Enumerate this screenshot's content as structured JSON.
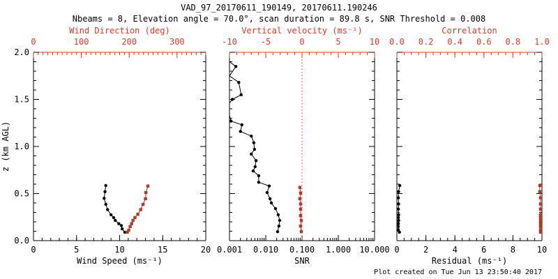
{
  "title": "VAD_97_20170611_190149, 20170611.190246",
  "subtitle": "Nbeams = 8, Elevation angle = 70.0°, scan duration = 89.8 s, SNR Threshold = 0.008",
  "footer": "Plot created on Tue Jun 13 23:50:40 2017",
  "colors": {
    "black": "#000000",
    "axis_red": "#e03a2a",
    "data_red": "#b23a28",
    "background": "#ffffff"
  },
  "y_axis": {
    "label": "z (km AGL)",
    "lim": [
      0.0,
      2.0
    ],
    "ticks": [
      0.0,
      0.5,
      1.0,
      1.5,
      2.0
    ],
    "tick_labels": [
      "0.0",
      "0.5",
      "1.0",
      "1.5",
      "2.0"
    ],
    "minor_step": 0.1
  },
  "chart_data": [
    {
      "type": "line",
      "name": "wind-panel",
      "bottom_axis": {
        "label": "Wind Speed (ms⁻¹)",
        "scale": "linear",
        "lim": [
          0,
          20
        ],
        "ticks": [
          0,
          5,
          10,
          15,
          20
        ],
        "tick_labels": [
          "0",
          "5",
          "10",
          "15",
          "20"
        ],
        "minor_step": 1
      },
      "top_axis": {
        "label": "Wind Direction (deg)",
        "lim": [
          0,
          360
        ],
        "ticks": [
          0,
          100,
          200,
          300
        ],
        "tick_labels": [
          "0",
          "100",
          "200",
          "300"
        ],
        "minor_step": 10
      },
      "series": [
        {
          "name": "wind-speed",
          "axis": "bottom",
          "color": "black",
          "marker": "circle",
          "points": [
            [
              8.4,
              0.585
            ],
            [
              8.3,
              0.52
            ],
            [
              8.2,
              0.45
            ],
            [
              8.4,
              0.385
            ],
            [
              8.6,
              0.33
            ],
            [
              9.0,
              0.275
            ],
            [
              9.3,
              0.245
            ],
            [
              9.5,
              0.215
            ],
            [
              9.9,
              0.18
            ],
            [
              10.2,
              0.16
            ],
            [
              10.3,
              0.125
            ],
            [
              10.6,
              0.09
            ]
          ]
        },
        {
          "name": "wind-direction",
          "axis": "top",
          "color": "red",
          "marker": "square",
          "points": [
            [
              239,
              0.58
            ],
            [
              235,
              0.51
            ],
            [
              234,
              0.445
            ],
            [
              229,
              0.385
            ],
            [
              224,
              0.33
            ],
            [
              218,
              0.28
            ],
            [
              212,
              0.245
            ],
            [
              208,
              0.215
            ],
            [
              205,
              0.18
            ],
            [
              202,
              0.15
            ],
            [
              199,
              0.11
            ],
            [
              196,
              0.09
            ]
          ]
        }
      ]
    },
    {
      "type": "line",
      "name": "snr-panel",
      "bottom_axis": {
        "label": "SNR",
        "scale": "log",
        "lim": [
          0.001,
          10.0
        ],
        "ticks": [
          0.001,
          0.01,
          0.1,
          1.0,
          10.0
        ],
        "tick_labels": [
          "0.001",
          "0.010",
          "0.100",
          "1.000",
          "10.000"
        ]
      },
      "top_axis": {
        "label": "Vertical velocity (ms⁻¹)",
        "lim": [
          -10,
          10
        ],
        "ticks": [
          -10,
          -5,
          0,
          5,
          10
        ],
        "tick_labels": [
          "-10",
          "-5",
          "0",
          "5",
          "10"
        ],
        "minor_step": 1
      },
      "refline": {
        "axis": "top",
        "value": 0,
        "style": "dotted",
        "color": "red"
      },
      "series": [
        {
          "name": "snr",
          "axis": "bottom",
          "color": "black",
          "marker": "circle",
          "marker_min": 0.00105,
          "points": [
            [
              0.001,
              1.9
            ],
            [
              0.0015,
              1.85
            ],
            [
              0.001,
              1.75
            ],
            [
              0.0018,
              1.68
            ],
            [
              0.0021,
              1.55
            ],
            [
              0.0012,
              1.5
            ],
            [
              0.001,
              1.46
            ],
            [
              0.001,
              1.33
            ],
            [
              0.0011,
              1.27
            ],
            [
              0.0022,
              1.23
            ],
            [
              0.002,
              1.16
            ],
            [
              0.004,
              1.11
            ],
            [
              0.0047,
              1.04
            ],
            [
              0.0049,
              0.97
            ],
            [
              0.004,
              0.92
            ],
            [
              0.0054,
              0.85
            ],
            [
              0.0051,
              0.785
            ],
            [
              0.0045,
              0.74
            ],
            [
              0.0064,
              0.69
            ],
            [
              0.0064,
              0.62
            ],
            [
              0.0125,
              0.58
            ],
            [
              0.0109,
              0.51
            ],
            [
              0.0131,
              0.445
            ],
            [
              0.0143,
              0.4
            ],
            [
              0.0186,
              0.34
            ],
            [
              0.0221,
              0.275
            ],
            [
              0.0242,
              0.215
            ],
            [
              0.0231,
              0.155
            ],
            [
              0.0212,
              0.095
            ]
          ]
        },
        {
          "name": "vertical-velocity",
          "axis": "top",
          "color": "red",
          "marker": "square",
          "points": [
            [
              -0.3,
              0.565
            ],
            [
              -0.2,
              0.505
            ],
            [
              -0.3,
              0.445
            ],
            [
              -0.2,
              0.39
            ],
            [
              -0.2,
              0.335
            ],
            [
              -0.2,
              0.265
            ],
            [
              -0.1,
              0.215
            ],
            [
              -0.2,
              0.155
            ],
            [
              -0.1,
              0.095
            ]
          ]
        }
      ]
    },
    {
      "type": "line",
      "name": "residual-panel",
      "bottom_axis": {
        "label": "Residual (ms⁻¹)",
        "scale": "linear",
        "lim": [
          0,
          10
        ],
        "ticks": [
          0,
          2,
          4,
          6,
          8,
          10
        ],
        "tick_labels": [
          "0",
          "2",
          "4",
          "6",
          "8",
          "10"
        ],
        "minor_step": 0.5
      },
      "top_axis": {
        "label": "Correlation",
        "lim": [
          0,
          1
        ],
        "ticks": [
          0,
          0.2,
          0.4,
          0.6,
          0.8,
          1.0
        ],
        "tick_labels": [
          "0.0",
          "0.2",
          "0.4",
          "0.6",
          "0.8",
          "1.0"
        ],
        "minor_step": 0.05
      },
      "series": [
        {
          "name": "residual",
          "axis": "bottom",
          "color": "black",
          "marker": "circle",
          "points": [
            [
              0.2,
              0.585
            ],
            [
              0.12,
              0.52
            ],
            [
              0.1,
              0.455
            ],
            [
              0.12,
              0.39
            ],
            [
              0.1,
              0.335
            ],
            [
              0.12,
              0.275
            ],
            [
              0.1,
              0.245
            ],
            [
              0.12,
              0.215
            ],
            [
              0.1,
              0.18
            ],
            [
              0.1,
              0.15
            ],
            [
              0.1,
              0.115
            ],
            [
              0.18,
              0.09
            ]
          ]
        },
        {
          "name": "correlation",
          "axis": "top",
          "color": "red",
          "marker": "square",
          "points": [
            [
              0.985,
              0.585
            ],
            [
              0.985,
              0.52
            ],
            [
              0.99,
              0.455
            ],
            [
              0.99,
              0.39
            ],
            [
              0.99,
              0.335
            ],
            [
              0.99,
              0.275
            ],
            [
              0.99,
              0.245
            ],
            [
              0.99,
              0.215
            ],
            [
              0.99,
              0.18
            ],
            [
              0.99,
              0.15
            ],
            [
              0.99,
              0.115
            ],
            [
              0.99,
              0.09
            ]
          ]
        }
      ]
    }
  ]
}
